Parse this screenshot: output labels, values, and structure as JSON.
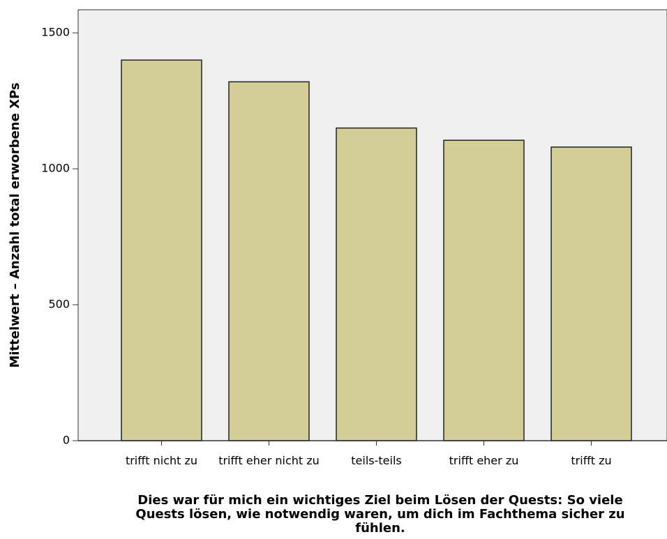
{
  "chart_data": {
    "type": "bar",
    "y_label": "Mittelwert – Anzahl total erworbene XPs",
    "x_label": "Dies war für mich ein wichtiges Ziel beim Lösen der Quests: So viele Quests lösen, wie notwendig waren, um dich im Fachthema sicher zu fühlen.",
    "categories": [
      "trifft nicht zu",
      "trifft eher nicht zu",
      "teils-teils",
      "trifft eher zu",
      "trifft zu"
    ],
    "values": [
      1400,
      1320,
      1150,
      1105,
      1080
    ],
    "color": "#d3ce97",
    "ylim": [
      0,
      1585
    ],
    "yticks": [
      0,
      500,
      1000,
      1500
    ],
    "grid": false
  }
}
